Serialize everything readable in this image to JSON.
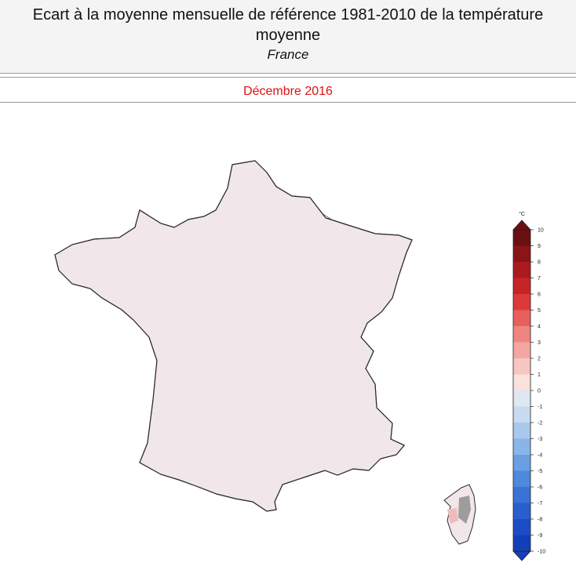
{
  "header": {
    "title": "Ecart à la moyenne mensuelle de référence 1981-2010 de la température moyenne",
    "region": "France"
  },
  "period": "Décembre 2016",
  "legend": {
    "unit": "°C",
    "min": -10,
    "max": 10,
    "ticks": [
      10,
      9,
      8,
      7,
      6,
      5,
      4,
      3,
      2,
      1,
      0,
      -1,
      -2,
      -3,
      -4,
      -5,
      -6,
      -7,
      -8,
      -9,
      -10
    ],
    "colors": {
      "10": "#6a0f12",
      "9": "#8a1418",
      "8": "#aa1a1e",
      "7": "#c82326",
      "6": "#dc3a3a",
      "5": "#e8605c",
      "4": "#ef8580",
      "3": "#f4a7a2",
      "2": "#f8c6c2",
      "1": "#fbe1de",
      "0": "#eef1f6",
      "-1": "#dfe7f3",
      "-2": "#c7daf0",
      "-3": "#a9c8ec",
      "-4": "#89b5e8",
      "-5": "#6a9fe3",
      "-6": "#4f88dd",
      "-7": "#3a72d6",
      "-8": "#2a5ecf",
      "-9": "#1e4cc6",
      "-10": "#1340b8"
    }
  },
  "map_colors": {
    "land_default": "#f1e6ea",
    "cool_zone": "#dce8f4",
    "cooler_zone": "#c3daf0",
    "warm_zone": "#f6dada",
    "warmer_zone": "#eebcbe",
    "relief_shade": "#7d7d7d",
    "outline": "#2a2a2a"
  }
}
